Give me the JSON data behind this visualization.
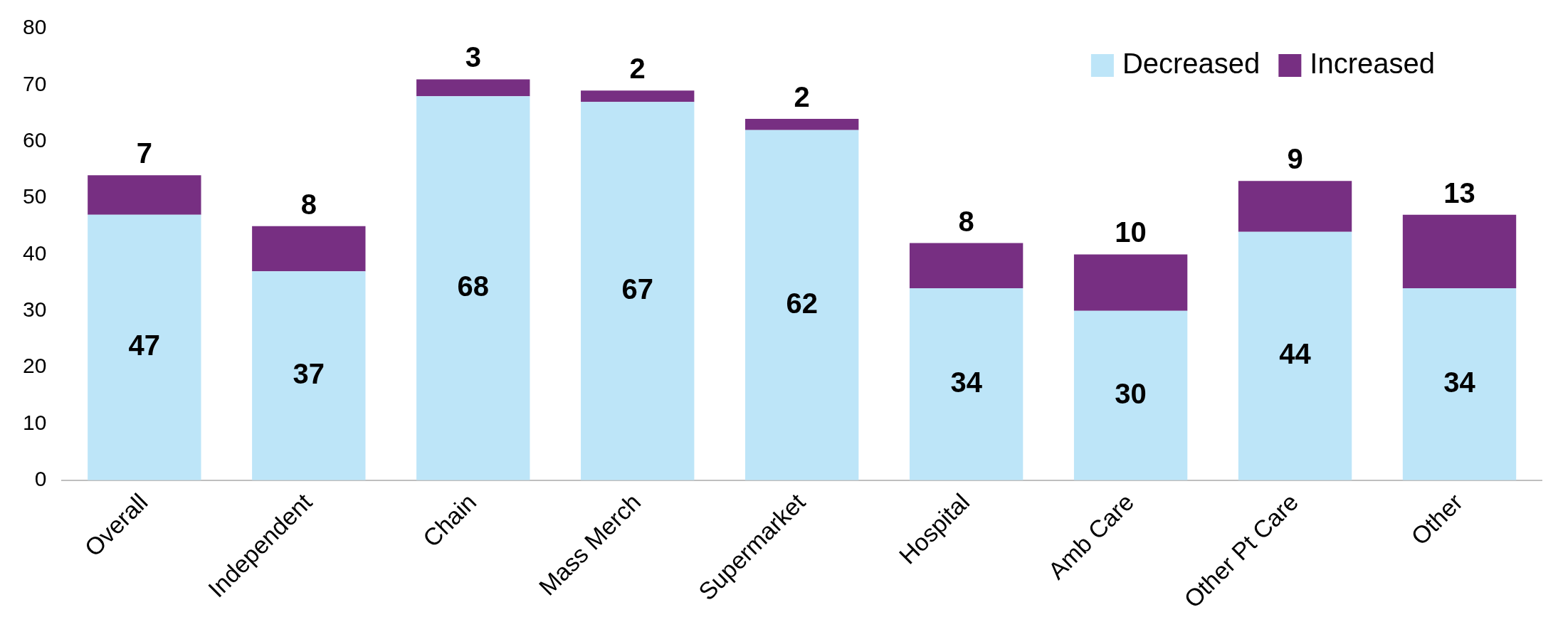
{
  "chart_data": {
    "type": "bar",
    "stacked": true,
    "categories": [
      "Overall",
      "Independent",
      "Chain",
      "Mass Merch",
      "Supermarket",
      "Hospital",
      "Amb Care",
      "Other Pt Care",
      "Other"
    ],
    "series": [
      {
        "name": "Decreased",
        "color": "#bde5f8",
        "values": [
          47,
          37,
          68,
          67,
          62,
          34,
          30,
          44,
          34
        ]
      },
      {
        "name": "Increased",
        "color": "#772f82",
        "values": [
          7,
          8,
          3,
          2,
          2,
          8,
          10,
          9,
          13
        ]
      }
    ],
    "ylim": [
      0,
      80
    ],
    "yticks": [
      0,
      10,
      20,
      30,
      40,
      50,
      60,
      70,
      80
    ],
    "grid": false,
    "legend": "top right",
    "data_labels": true
  }
}
